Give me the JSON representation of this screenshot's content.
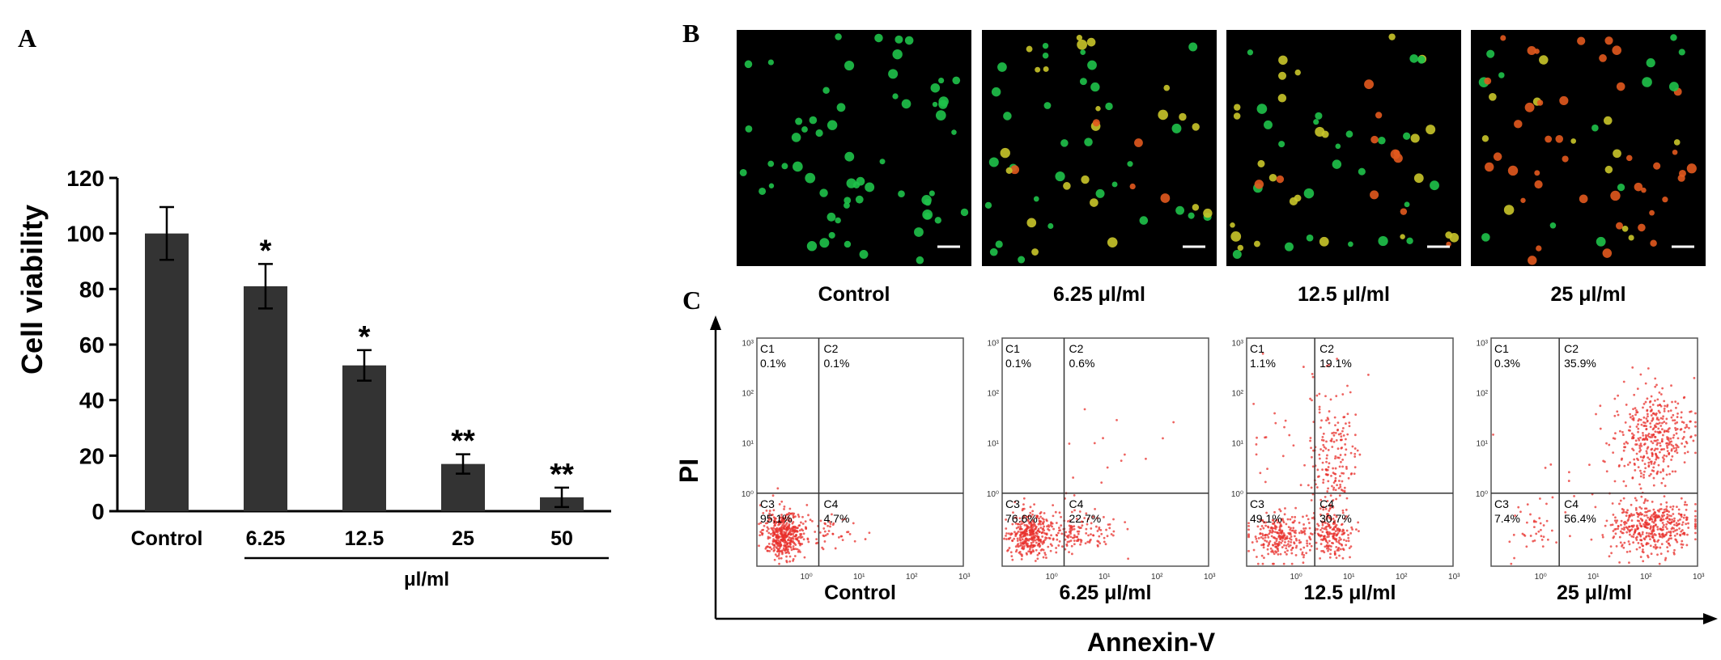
{
  "panel_labels": {
    "a": "A",
    "b": "B",
    "c": "C"
  },
  "chart_data": [
    {
      "type": "bar",
      "ylabel": "Cell viability",
      "ylim": [
        0,
        120
      ],
      "yticks": [
        "0",
        "20",
        "40",
        "60",
        "80",
        "100",
        "120"
      ],
      "categories": [
        "Control",
        "6.25",
        "12.5",
        "25",
        "50"
      ],
      "values": [
        100,
        81,
        52.5,
        17,
        5
      ],
      "errors": [
        9.5,
        8,
        5.5,
        3.5,
        3.5
      ],
      "significance": [
        "",
        "*",
        "*",
        "**",
        "**"
      ],
      "group_label": "μl/ml",
      "colors": {
        "bar": "#333333"
      }
    },
    {
      "type": "scatter",
      "xlabel": "Annexin-V",
      "ylabel": "PI",
      "x_scale": "log",
      "y_scale": "log",
      "xticks": [
        "10⁰",
        "10¹",
        "10²",
        "10³"
      ],
      "yticks": [
        "10⁰",
        "10¹",
        "10²",
        "10³"
      ],
      "plots": [
        {
          "condition": "Control",
          "quadrants": {
            "C1": "0.1%",
            "C2": "0.1%",
            "C3": "95.1%",
            "C4": "4.7%"
          }
        },
        {
          "condition": "6.25 μl/ml",
          "quadrants": {
            "C1": "0.1%",
            "C2": "0.6%",
            "C3": "76.6%",
            "C4": "22.7%"
          }
        },
        {
          "condition": "12.5 μl/ml",
          "quadrants": {
            "C1": "1.1%",
            "C2": "19.1%",
            "C3": "49.1%",
            "C4": "30.7%"
          }
        },
        {
          "condition": "25 μl/ml",
          "quadrants": {
            "C1": "0.3%",
            "C2": "35.9%",
            "C3": "7.4%",
            "C4": "56.4%"
          }
        }
      ],
      "colors": {
        "dots": "#e8302c"
      }
    }
  ],
  "micrographs": {
    "captions": [
      "Control",
      "6.25 μl/ml",
      "12.5 μl/ml",
      "25 μl/ml"
    ],
    "colors": {
      "live": "#1fc24a",
      "mid": "#c9c52a",
      "dead": "#e2591e"
    }
  }
}
